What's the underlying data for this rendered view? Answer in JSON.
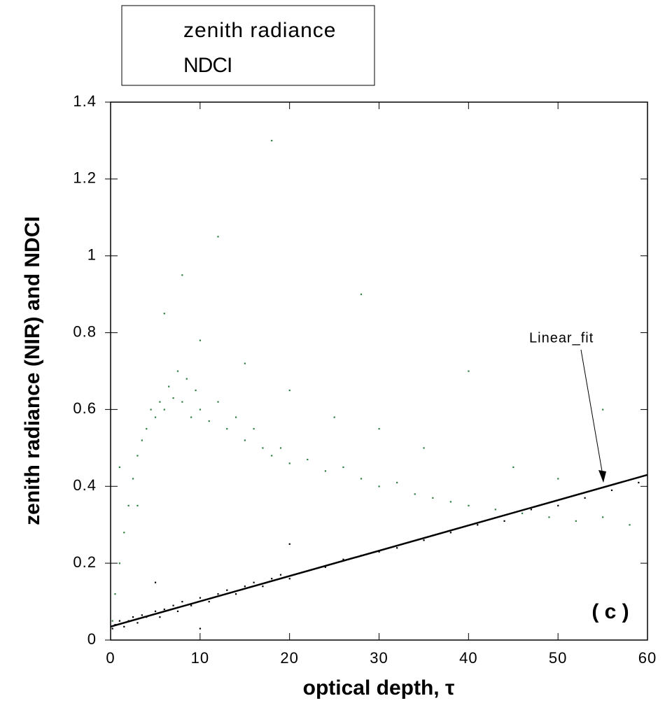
{
  "chart_data": {
    "type": "scatter",
    "xlabel": "optical depth, τ",
    "ylabel": "zenith radiance (NIR) and NDCI",
    "xlim": [
      0,
      60
    ],
    "ylim": [
      0,
      1.4
    ],
    "xticks": [
      0,
      10,
      20,
      30,
      40,
      50,
      60
    ],
    "yticks": [
      0,
      0.2,
      0.4,
      0.6,
      0.8,
      1,
      1.2,
      1.4
    ],
    "series": [
      {
        "name": "zenith radiance",
        "color": "#2e7d3e",
        "x": [
          0.2,
          0.5,
          1,
          1.5,
          2,
          2.5,
          3,
          3.5,
          4,
          4.5,
          5,
          5.5,
          6,
          6.5,
          7,
          7.5,
          8,
          8.5,
          9,
          9.5,
          10,
          11,
          12,
          13,
          14,
          15,
          16,
          17,
          18,
          19,
          20,
          22,
          24,
          26,
          28,
          30,
          32,
          34,
          36,
          38,
          40,
          43,
          46,
          49,
          52,
          55,
          58,
          6,
          8,
          10,
          12,
          15,
          20,
          25,
          30,
          35,
          45,
          50,
          18,
          40,
          55,
          28,
          3,
          1
        ],
        "values": [
          0.05,
          0.12,
          0.2,
          0.28,
          0.35,
          0.42,
          0.48,
          0.52,
          0.55,
          0.6,
          0.58,
          0.62,
          0.6,
          0.66,
          0.63,
          0.7,
          0.62,
          0.68,
          0.58,
          0.65,
          0.6,
          0.57,
          0.62,
          0.55,
          0.58,
          0.52,
          0.55,
          0.5,
          0.48,
          0.5,
          0.46,
          0.47,
          0.44,
          0.45,
          0.42,
          0.4,
          0.41,
          0.38,
          0.37,
          0.36,
          0.35,
          0.34,
          0.33,
          0.32,
          0.31,
          0.32,
          0.3,
          0.85,
          0.95,
          0.78,
          1.05,
          0.72,
          0.65,
          0.58,
          0.55,
          0.5,
          0.45,
          0.42,
          1.3,
          0.7,
          0.6,
          0.9,
          0.35,
          0.45
        ]
      },
      {
        "name": "NDCI",
        "color": "#000000",
        "x": [
          0.2,
          0.5,
          1,
          1.5,
          2,
          2.5,
          3,
          3.5,
          4,
          5,
          5.5,
          6,
          7,
          7.5,
          8,
          9,
          10,
          11,
          12,
          13,
          14,
          15,
          16,
          17,
          18,
          19,
          20,
          22,
          24,
          26,
          28,
          30,
          32,
          35,
          38,
          41,
          44,
          47,
          50,
          53,
          56,
          59,
          5,
          10,
          20
        ],
        "values": [
          0.03,
          0.04,
          0.05,
          0.035,
          0.05,
          0.06,
          0.045,
          0.065,
          0.06,
          0.075,
          0.06,
          0.08,
          0.09,
          0.075,
          0.1,
          0.09,
          0.11,
          0.1,
          0.12,
          0.13,
          0.12,
          0.14,
          0.15,
          0.14,
          0.16,
          0.17,
          0.16,
          0.18,
          0.19,
          0.21,
          0.22,
          0.23,
          0.24,
          0.26,
          0.28,
          0.3,
          0.31,
          0.34,
          0.35,
          0.37,
          0.39,
          0.41,
          0.15,
          0.03,
          0.25
        ]
      }
    ],
    "fit": {
      "x": [
        0,
        60
      ],
      "values": [
        0.035,
        0.43
      ]
    },
    "annotations": [
      "Linear_fit",
      "( c )"
    ]
  }
}
